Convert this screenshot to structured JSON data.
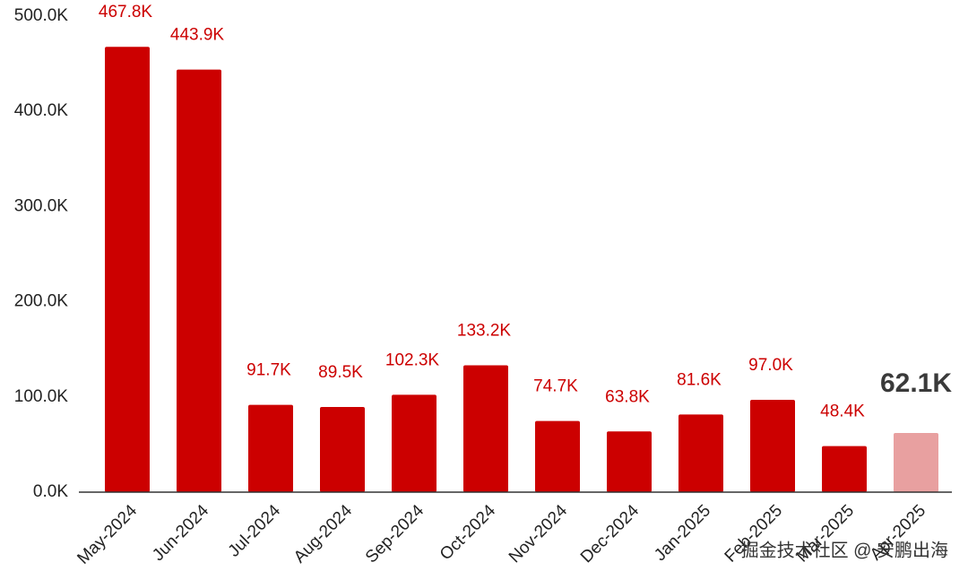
{
  "chart_data": {
    "type": "bar",
    "categories": [
      "May-2024",
      "Jun-2024",
      "Jul-2024",
      "Aug-2024",
      "Sep-2024",
      "Oct-2024",
      "Nov-2024",
      "Dec-2024",
      "Jan-2025",
      "Feb-2025",
      "Mar-2025",
      "Apr-2025"
    ],
    "values": [
      467800,
      443900,
      91700,
      89500,
      102300,
      133200,
      74700,
      63800,
      81600,
      97000,
      48400,
      62100
    ],
    "value_labels": [
      "467.8K",
      "443.9K",
      "91.7K",
      "89.5K",
      "102.3K",
      "133.2K",
      "74.7K",
      "63.8K",
      "81.6K",
      "97.0K",
      "48.4K",
      "62.1K"
    ],
    "colors": [
      "#cc0000",
      "#cc0000",
      "#cc0000",
      "#cc0000",
      "#cc0000",
      "#cc0000",
      "#cc0000",
      "#cc0000",
      "#cc0000",
      "#cc0000",
      "#cc0000",
      "#e8a0a0"
    ],
    "value_label_colors": [
      "#cc0000",
      "#cc0000",
      "#cc0000",
      "#cc0000",
      "#cc0000",
      "#cc0000",
      "#cc0000",
      "#cc0000",
      "#cc0000",
      "#cc0000",
      "#cc0000",
      "#3a3a3a"
    ],
    "ylim": [
      0,
      500000
    ],
    "yticks": [
      {
        "value": 0,
        "label": "0.0K"
      },
      {
        "value": 100000,
        "label": "100.0K"
      },
      {
        "value": 200000,
        "label": "200.0K"
      },
      {
        "value": 300000,
        "label": "300.0K"
      },
      {
        "value": 400000,
        "label": "400.0K"
      },
      {
        "value": 500000,
        "label": "500.0K"
      }
    ],
    "grid": false,
    "watermark": "掘金技术社区 @ 安鹏出海"
  }
}
